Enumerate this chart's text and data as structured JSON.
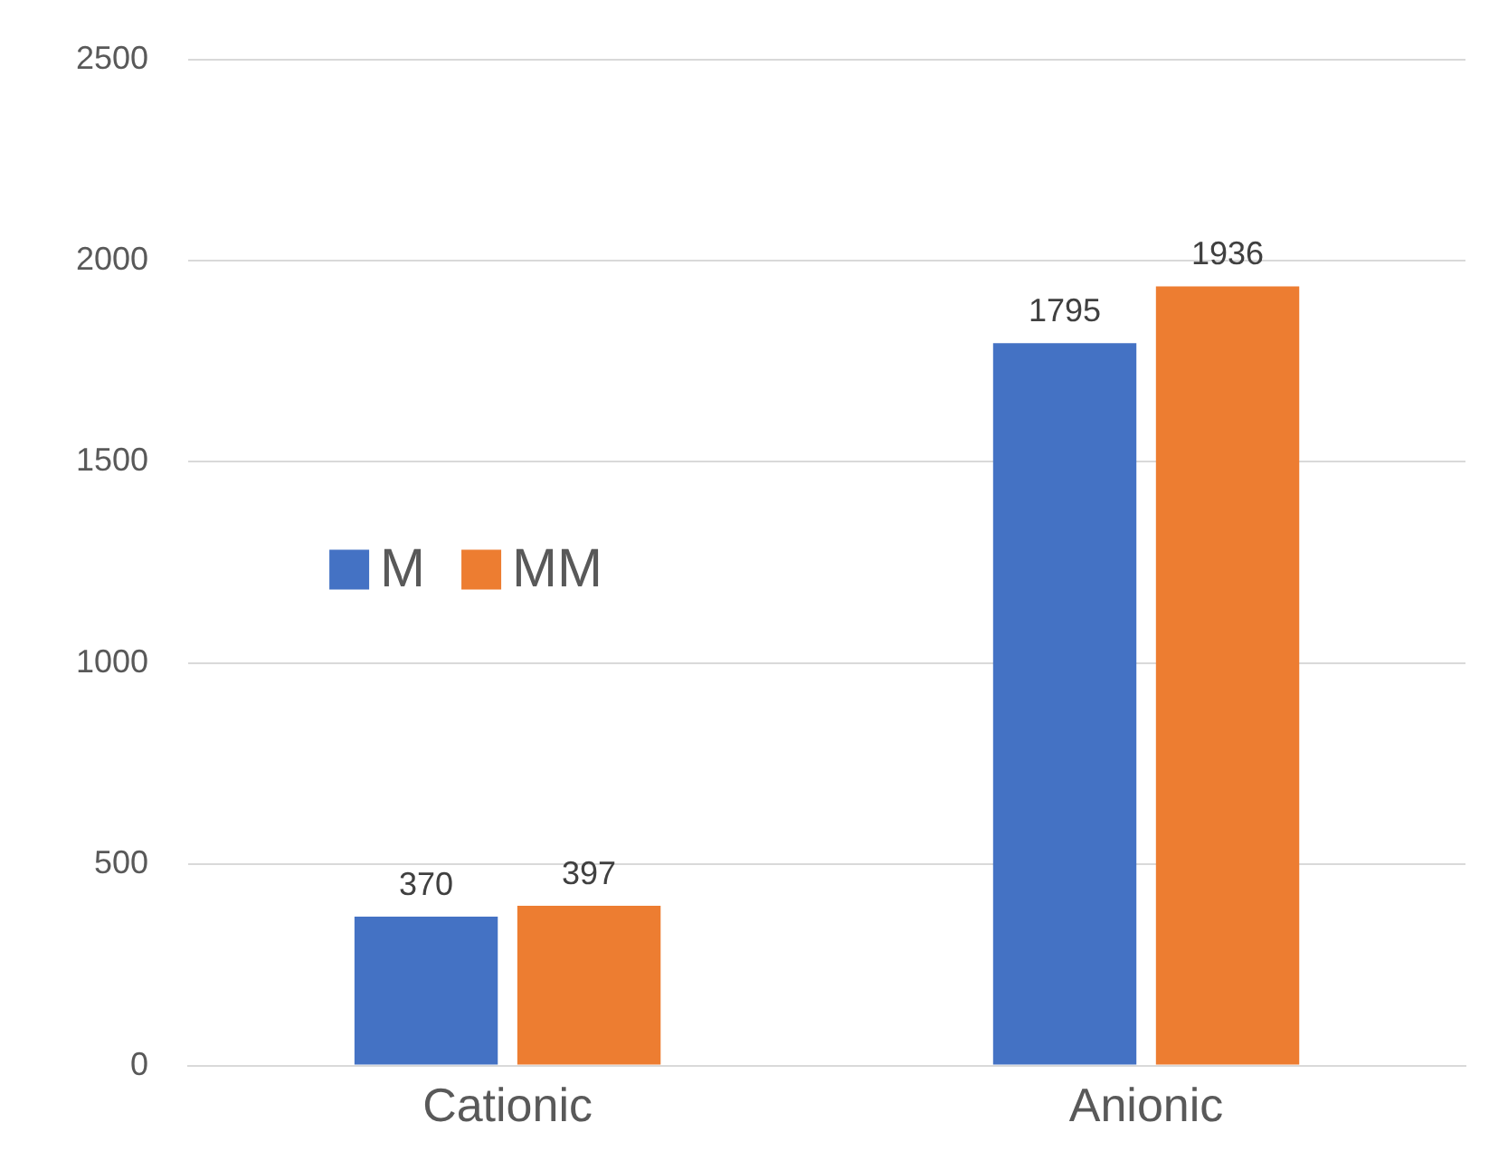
{
  "chart_data": {
    "type": "bar",
    "categories": [
      "Cationic",
      "Anionic"
    ],
    "series": [
      {
        "name": "M",
        "color": "#4472c4",
        "values": [
          370,
          1795
        ]
      },
      {
        "name": "MM",
        "color": "#ed7d31",
        "values": [
          397,
          1936
        ]
      }
    ],
    "ylim": [
      0,
      2500
    ],
    "yticks": [
      0,
      500,
      1000,
      1500,
      2000,
      2500
    ],
    "grid": "y",
    "legend": "left",
    "data_labels": true
  }
}
